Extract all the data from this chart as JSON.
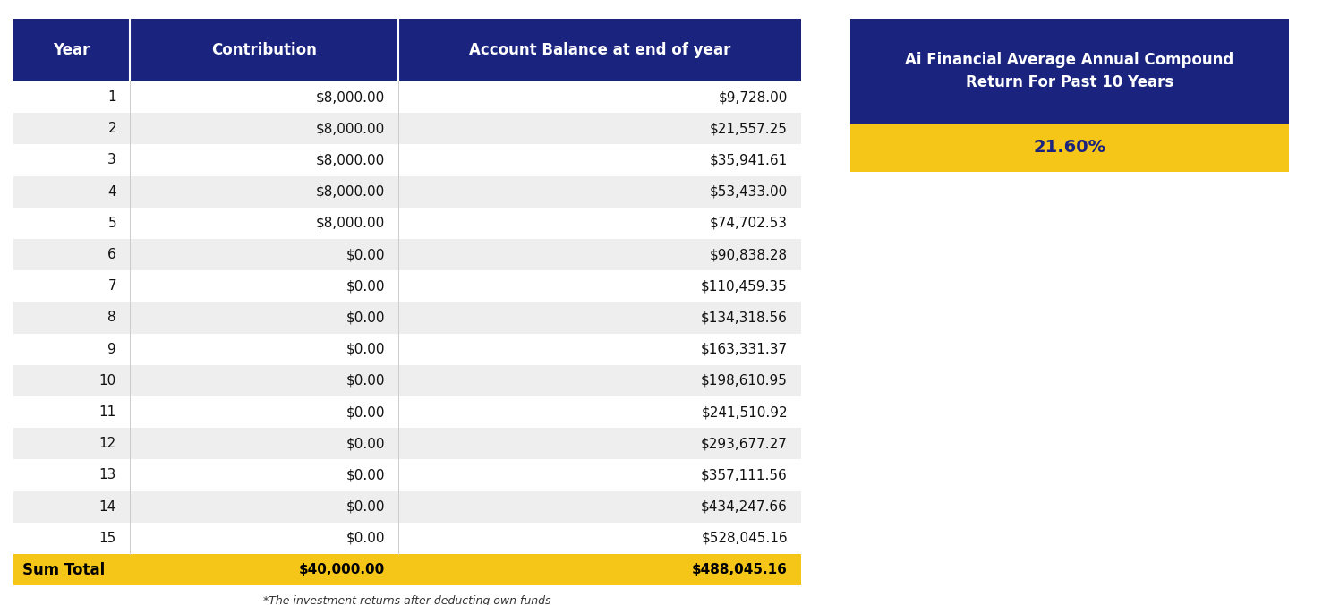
{
  "years": [
    1,
    2,
    3,
    4,
    5,
    6,
    7,
    8,
    9,
    10,
    11,
    12,
    13,
    14,
    15
  ],
  "contributions": [
    "$8,000.00",
    "$8,000.00",
    "$8,000.00",
    "$8,000.00",
    "$8,000.00",
    "$0.00",
    "$0.00",
    "$0.00",
    "$0.00",
    "$0.00",
    "$0.00",
    "$0.00",
    "$0.00",
    "$0.00",
    "$0.00"
  ],
  "balances": [
    "$9,728.00",
    "$21,557.25",
    "$35,941.61",
    "$53,433.00",
    "$74,702.53",
    "$90,838.28",
    "$110,459.35",
    "$134,318.56",
    "$163,331.37",
    "$198,610.95",
    "$241,510.92",
    "$293,677.27",
    "$357,111.56",
    "$434,247.66",
    "$528,045.16"
  ],
  "sum_contribution": "$40,000.00",
  "sum_balance": "$488,045.16",
  "col_headers": [
    "Year",
    "Contribution",
    "Account Balance at end of year"
  ],
  "header_bg": "#1a237e",
  "header_text": "#ffffff",
  "row_bg_odd": "#ffffff",
  "row_bg_even": "#eeeeee",
  "sum_bg": "#f5c518",
  "sum_text": "#000000",
  "sum_label": "Sum Total",
  "sidebar_title": "Ai Financial Average Annual Compound\nReturn For Past 10 Years",
  "sidebar_rate": "21.60%",
  "sidebar_bg": "#1a237e",
  "sidebar_title_text": "#ffffff",
  "sidebar_rate_bg": "#f5c518",
  "sidebar_rate_text": "#1a237e",
  "footnote": "*The investment returns after deducting own funds",
  "footnote_color": "#333333"
}
